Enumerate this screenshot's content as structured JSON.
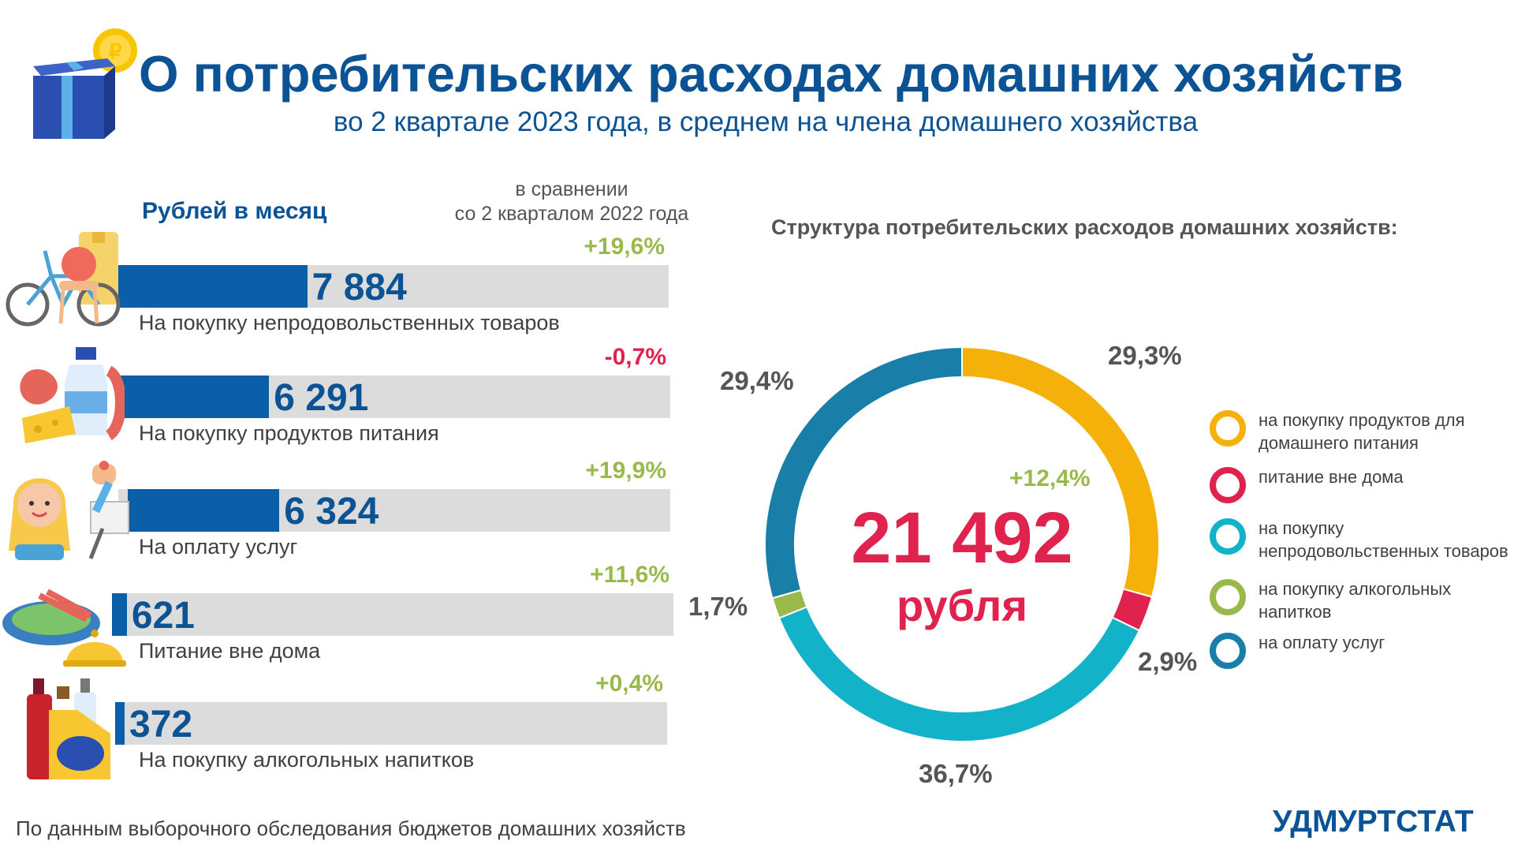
{
  "header": {
    "title": "О потребительских расходах домашних хозяйств",
    "subtitle": "во 2 квартале 2023 года, в среднем на члена домашнего хозяйства"
  },
  "bars_section": {
    "heading": "Рублей в месяц",
    "compare_heading": "в сравнении\nсо 2 кварталом 2022 года"
  },
  "donut_section": {
    "title": "Структура потребительских расходов домашних хозяйств:",
    "total": "21 492",
    "unit": "рубля",
    "change": "+12,4%"
  },
  "footer": {
    "note": "По данным выборочного обследования бюджетов домашних хозяйств",
    "brand": "УДМУРТСТАТ"
  },
  "colors": {
    "brand_blue": "#0b5394",
    "bar_fill": "#0b5ea8",
    "track": "#dcdcdc",
    "positive": "#9ab94b",
    "negative": "#e0234e",
    "food": "#f5b10a",
    "eating_out": "#e0234e",
    "non_food": "#12b3c8",
    "alcohol": "#9ab94b",
    "services": "#1a7fa8"
  },
  "chart_data": [
    {
      "type": "bar",
      "orientation": "horizontal",
      "title": "Рублей в месяц",
      "categories": [
        "На покупку непродовольственных товаров",
        "На покупку продуктов питания",
        "На оплату услуг",
        "Питание вне дома",
        "На покупку алкогольных напитков"
      ],
      "values": [
        7884,
        6291,
        6324,
        621,
        372
      ],
      "value_labels": [
        "7 884",
        "6 291",
        "6 324",
        "621",
        "372"
      ],
      "changes": [
        "+19,6%",
        "-0,7%",
        "+19,9%",
        "+11,6%",
        "+0,4%"
      ],
      "change_signs": [
        "positive",
        "negative",
        "positive",
        "positive",
        "positive"
      ],
      "icons": [
        "bicycle-chair-coat-icon",
        "groceries-icon",
        "person-services-icon",
        "restaurant-dish-icon",
        "bottles-icon"
      ]
    },
    {
      "type": "pie",
      "donut": true,
      "title": "Структура потребительских расходов домашних хозяйств:",
      "slices": [
        {
          "key": "food",
          "value": 29.3,
          "label": "29,3%"
        },
        {
          "key": "eating_out",
          "value": 2.9,
          "label": "2,9%"
        },
        {
          "key": "non_food",
          "value": 36.7,
          "label": "36,7%"
        },
        {
          "key": "alcohol",
          "value": 1.7,
          "label": "1,7%"
        },
        {
          "key": "services",
          "value": 29.4,
          "label": "29,4%"
        }
      ],
      "legend": [
        {
          "key": "food",
          "label": "на покупку продуктов для домашнего питания"
        },
        {
          "key": "eating_out",
          "label": "питание вне дома"
        },
        {
          "key": "non_food",
          "label": "на покупку непродовольственных товаров"
        },
        {
          "key": "alcohol",
          "label": "на покупку алкогольных напитков"
        },
        {
          "key": "services",
          "label": "на оплату услуг"
        }
      ],
      "legend_position": "right"
    }
  ]
}
